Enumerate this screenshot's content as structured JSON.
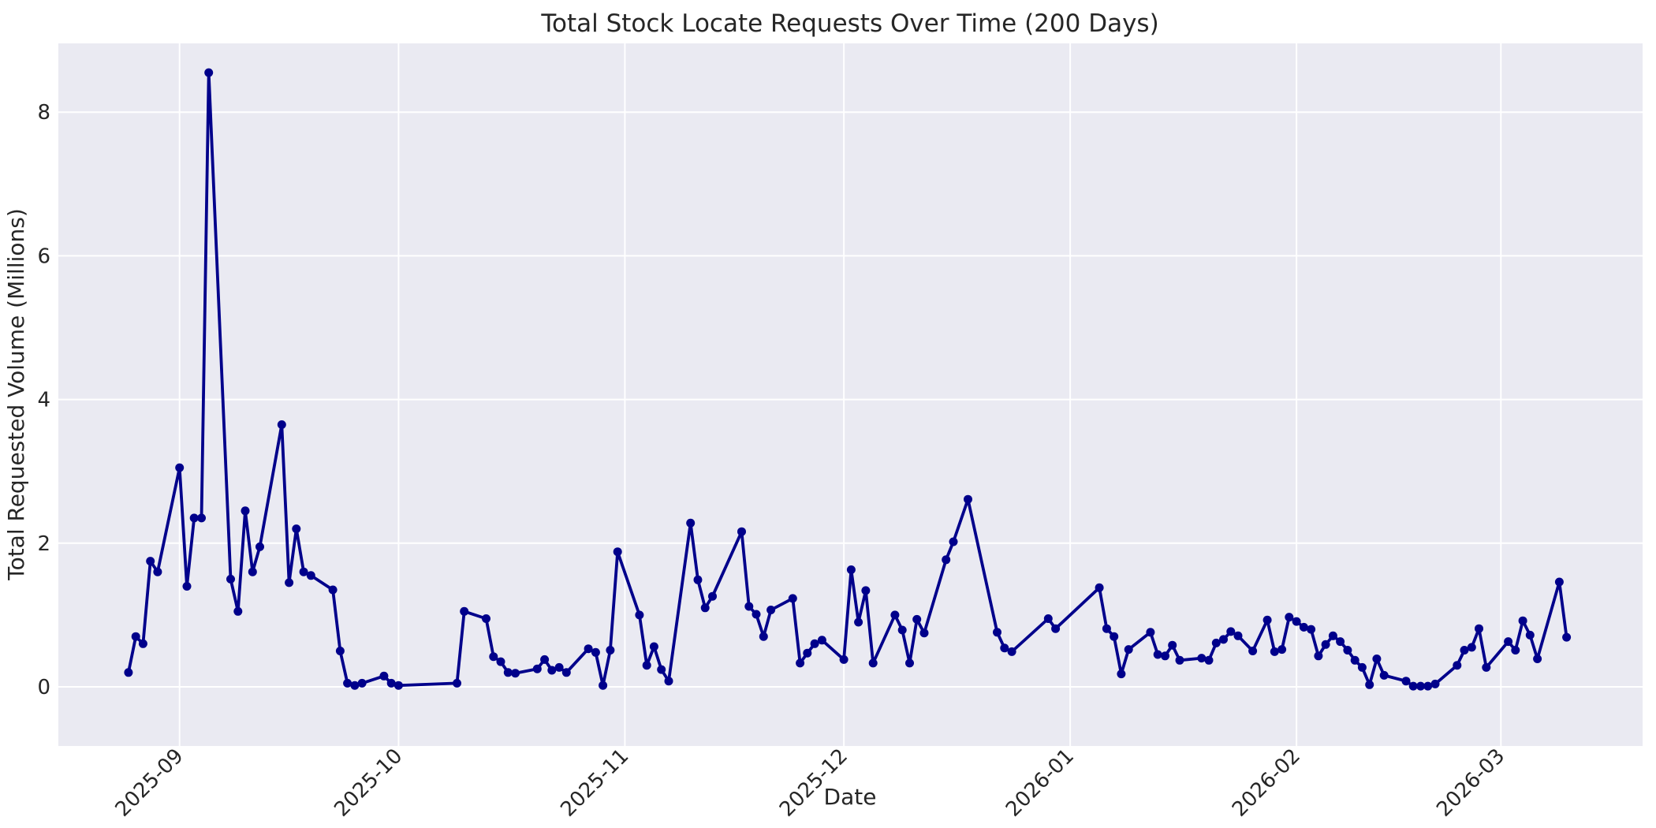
{
  "title": "Total Stock Locate Requests Over Time (200 Days)",
  "xlabel": "Date",
  "ylabel": "Total Requested Volume (Millions)",
  "chart_data": {
    "type": "line",
    "series": [
      {
        "name": "Total Stock Locate Requests",
        "x": [
          "2025-08-25",
          "2025-08-26",
          "2025-08-27",
          "2025-08-28",
          "2025-08-29",
          "2025-09-01",
          "2025-09-02",
          "2025-09-03",
          "2025-09-04",
          "2025-09-05",
          "2025-09-08",
          "2025-09-09",
          "2025-09-10",
          "2025-09-11",
          "2025-09-12",
          "2025-09-15",
          "2025-09-16",
          "2025-09-17",
          "2025-09-18",
          "2025-09-19",
          "2025-09-22",
          "2025-09-23",
          "2025-09-24",
          "2025-09-25",
          "2025-09-26",
          "2025-09-29",
          "2025-09-30",
          "2025-10-01",
          "2025-10-09",
          "2025-10-10",
          "2025-10-13",
          "2025-10-14",
          "2025-10-15",
          "2025-10-16",
          "2025-10-17",
          "2025-10-20",
          "2025-10-21",
          "2025-10-22",
          "2025-10-23",
          "2025-10-24",
          "2025-10-27",
          "2025-10-28",
          "2025-10-29",
          "2025-10-30",
          "2025-10-31",
          "2025-11-03",
          "2025-11-04",
          "2025-11-05",
          "2025-11-06",
          "2025-11-07",
          "2025-11-10",
          "2025-11-11",
          "2025-11-12",
          "2025-11-13",
          "2025-11-17",
          "2025-11-18",
          "2025-11-19",
          "2025-11-20",
          "2025-11-21",
          "2025-11-24",
          "2025-11-25",
          "2025-11-26",
          "2025-11-27",
          "2025-11-28",
          "2025-12-01",
          "2025-12-02",
          "2025-12-03",
          "2025-12-04",
          "2025-12-05",
          "2025-12-08",
          "2025-12-09",
          "2025-12-10",
          "2025-12-11",
          "2025-12-12",
          "2025-12-15",
          "2025-12-16",
          "2025-12-18",
          "2025-12-22",
          "2025-12-23",
          "2025-12-24",
          "2025-12-29",
          "2025-12-30",
          "2026-01-05",
          "2026-01-06",
          "2026-01-07",
          "2026-01-08",
          "2026-01-09",
          "2026-01-12",
          "2026-01-13",
          "2026-01-14",
          "2026-01-15",
          "2026-01-16",
          "2026-01-19",
          "2026-01-20",
          "2026-01-21",
          "2026-01-22",
          "2026-01-23",
          "2026-01-24",
          "2026-01-26",
          "2026-01-28",
          "2026-01-29",
          "2026-01-30",
          "2026-01-31",
          "2026-02-01",
          "2026-02-02",
          "2026-02-03",
          "2026-02-04",
          "2026-02-05",
          "2026-02-06",
          "2026-02-07",
          "2026-02-08",
          "2026-02-09",
          "2026-02-10",
          "2026-02-11",
          "2026-02-12",
          "2026-02-13",
          "2026-02-16",
          "2026-02-17",
          "2026-02-18",
          "2026-02-19",
          "2026-02-20",
          "2026-02-23",
          "2026-02-24",
          "2026-02-25",
          "2026-02-26",
          "2026-02-27",
          "2026-03-02",
          "2026-03-03",
          "2026-03-04",
          "2026-03-05",
          "2026-03-06",
          "2026-03-09",
          "2026-03-10"
        ],
        "y": [
          0.2,
          0.7,
          0.6,
          1.75,
          1.6,
          3.05,
          1.4,
          2.35,
          2.35,
          8.55,
          1.5,
          1.05,
          2.45,
          1.6,
          1.95,
          3.65,
          1.45,
          2.2,
          1.6,
          1.55,
          1.35,
          0.5,
          0.05,
          0.02,
          0.05,
          0.15,
          0.05,
          0.02,
          0.05,
          1.05,
          0.95,
          0.42,
          0.35,
          0.2,
          0.19,
          0.25,
          0.38,
          0.23,
          0.27,
          0.2,
          0.53,
          0.48,
          0.02,
          0.51,
          1.88,
          1.0,
          0.3,
          0.56,
          0.24,
          0.08,
          2.28,
          1.49,
          1.1,
          1.26,
          2.16,
          1.12,
          1.01,
          0.7,
          1.07,
          1.23,
          0.33,
          0.47,
          0.6,
          0.65,
          0.38,
          1.63,
          0.9,
          1.34,
          0.33,
          1.0,
          0.79,
          0.33,
          0.94,
          0.75,
          1.77,
          2.02,
          2.61,
          0.76,
          0.54,
          0.49,
          0.95,
          0.81,
          1.38,
          0.81,
          0.7,
          0.18,
          0.52,
          0.76,
          0.45,
          0.43,
          0.58,
          0.37,
          0.4,
          0.37,
          0.61,
          0.66,
          0.77,
          0.71,
          0.5,
          0.93,
          0.49,
          0.52,
          0.97,
          0.91,
          0.83,
          0.8,
          0.43,
          0.59,
          0.71,
          0.63,
          0.51,
          0.37,
          0.27,
          0.03,
          0.39,
          0.16,
          0.08,
          0.01,
          0.01,
          0.01,
          0.04,
          0.3,
          0.51,
          0.55,
          0.81,
          0.27,
          0.63,
          0.51,
          0.92,
          0.72,
          0.39,
          1.46,
          0.69
        ]
      }
    ],
    "title": "Total Stock Locate Requests Over Time (200 Days)",
    "xlabel": "Date",
    "ylabel": "Total Requested Volume (Millions)",
    "x_tick_labels": [
      "2025-09",
      "2025-10",
      "2025-11",
      "2025-12",
      "2026-01",
      "2026-02",
      "2026-03"
    ],
    "x_tick_dates": [
      "2025-09-01",
      "2025-10-01",
      "2025-11-01",
      "2025-12-01",
      "2026-01-01",
      "2026-02-01",
      "2026-03-01"
    ],
    "y_ticks": [
      "0",
      "2",
      "4",
      "6",
      "8"
    ],
    "y_tick_values": [
      0,
      2,
      4,
      6,
      8
    ],
    "xlim": [
      "2025-08-15",
      "2026-03-20"
    ],
    "ylim": [
      -0.82,
      8.96
    ],
    "grid": true,
    "legend": false,
    "x_tick_rotation_deg": 45,
    "line_color": "#00008b",
    "marker": "circle",
    "plot_background_color": "#eaeaf2",
    "grid_color": "#ffffff",
    "text_color": "#262626"
  }
}
